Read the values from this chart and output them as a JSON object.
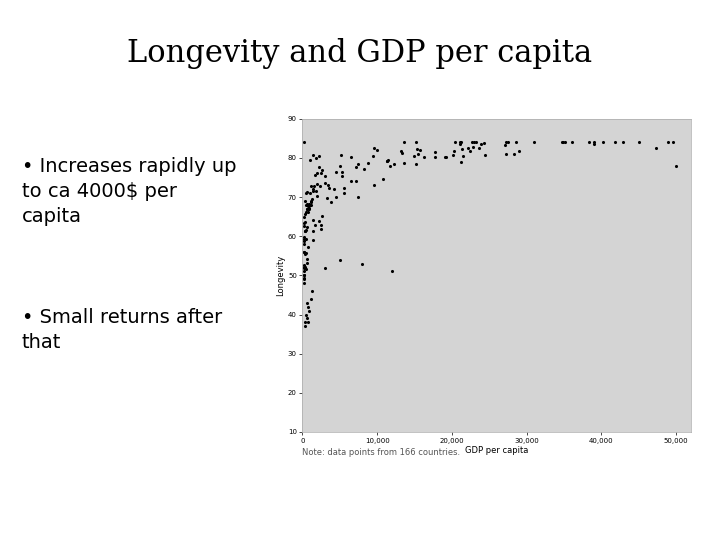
{
  "title": "Longevity and GDP per capita",
  "bullet1": "Increases rapidly up\nto ca 4000$ per\ncapita",
  "bullet2": "Small returns after\nthat",
  "xlabel": "GDP per capita",
  "ylabel": "Longevity",
  "note": "Note: data points from 166 countries.",
  "xlim": [
    0,
    52000
  ],
  "ylim": [
    10,
    90
  ],
  "xticks": [
    0,
    10000,
    20000,
    30000,
    40000,
    50000
  ],
  "yticks": [
    10,
    20,
    30,
    40,
    50,
    60,
    70,
    80,
    90
  ],
  "plot_bg": "#d4d4d4",
  "fig_bg": "#ffffff",
  "scatter_color": "#000000",
  "title_fontsize": 22,
  "bullet_fontsize": 14,
  "note_fontsize": 6,
  "seed": 42
}
